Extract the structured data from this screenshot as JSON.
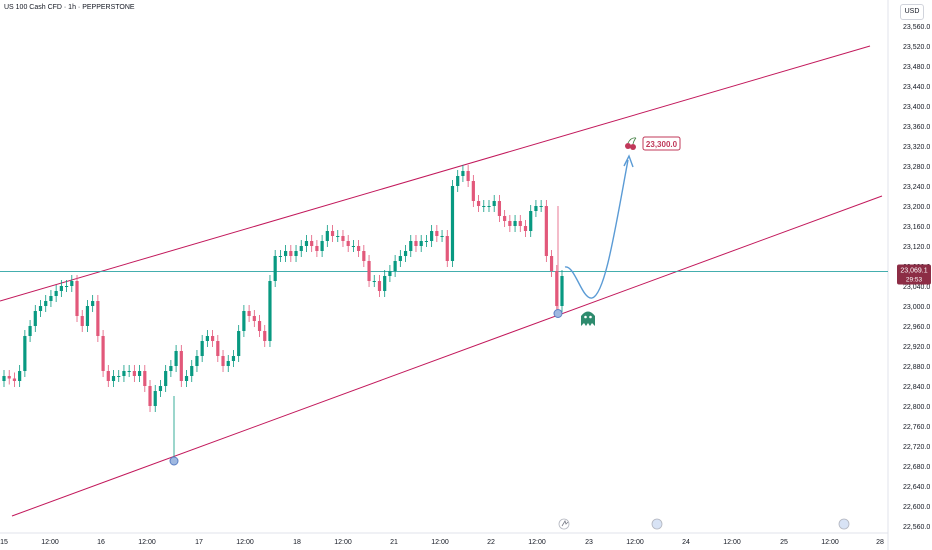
{
  "header": {
    "title": "US 100 Cash CFD · 1h · PEPPERSTONE",
    "currency": "USD"
  },
  "price_tag": {
    "value": "23,069.1",
    "countdown": "29:53"
  },
  "colors": {
    "up": "#089981",
    "down": "#e2587a",
    "channel": "#c2185b",
    "hline": "#2aa3a3",
    "arrow": "#5b9bd5",
    "target": "#c0395a"
  },
  "chart_data": {
    "type": "candlestick",
    "title": "US 100 Cash CFD · 1h · PEPPERSTONE",
    "y_ticks": [
      "23,560.0",
      "23,520.0",
      "23,480.0",
      "23,440.0",
      "23,400.0",
      "23,360.0",
      "23,320.0",
      "23,280.0",
      "23,240.0",
      "23,200.0",
      "23,160.0",
      "23,120.0",
      "23,080.0",
      "23,040.0",
      "23,000.0",
      "22,960.0",
      "22,920.0",
      "22,880.0",
      "22,840.0",
      "22,800.0",
      "22,760.0",
      "22,720.0",
      "22,680.0",
      "22,640.0",
      "22,600.0",
      "22,560.0"
    ],
    "x_ticks": [
      "15",
      "12:00",
      "16",
      "12:00",
      "17",
      "12:00",
      "18",
      "12:00",
      "21",
      "12:00",
      "22",
      "12:00",
      "23",
      "12:00",
      "24",
      "12:00",
      "25",
      "12:00",
      "28"
    ],
    "ylim": [
      22540,
      23580
    ],
    "current_price": 23069.1,
    "target_label": "23,300.0",
    "channel_upper": {
      "start": 23010,
      "end": 23520
    },
    "channel_lower": {
      "start": 22580,
      "end": 23220
    },
    "closes": [
      22860,
      22855,
      22850,
      22870,
      22940,
      22960,
      22990,
      23000,
      23010,
      23020,
      23030,
      23040,
      23040,
      23050,
      22980,
      22960,
      23000,
      23010,
      22940,
      22870,
      22850,
      22860,
      22860,
      22870,
      22870,
      22860,
      22870,
      22840,
      22800,
      22830,
      22840,
      22870,
      22880,
      22910,
      22850,
      22860,
      22880,
      22900,
      22930,
      22940,
      22930,
      22900,
      22880,
      22890,
      22900,
      22950,
      22990,
      22980,
      22970,
      22950,
      22930,
      23050,
      23100,
      23100,
      23110,
      23100,
      23110,
      23120,
      23130,
      23120,
      23110,
      23130,
      23150,
      23140,
      23140,
      23130,
      23120,
      23120,
      23110,
      23090,
      23050,
      23050,
      23030,
      23060,
      23070,
      23090,
      23100,
      23110,
      23130,
      23120,
      23130,
      23130,
      23150,
      23140,
      23140,
      23090,
      23240,
      23260,
      23270,
      23250,
      23210,
      23200,
      23200,
      23200,
      23210,
      23180,
      23170,
      23160,
      23170,
      23160,
      23150,
      23190,
      23200,
      23200,
      23100,
      23070,
      23000,
      23060
    ]
  }
}
